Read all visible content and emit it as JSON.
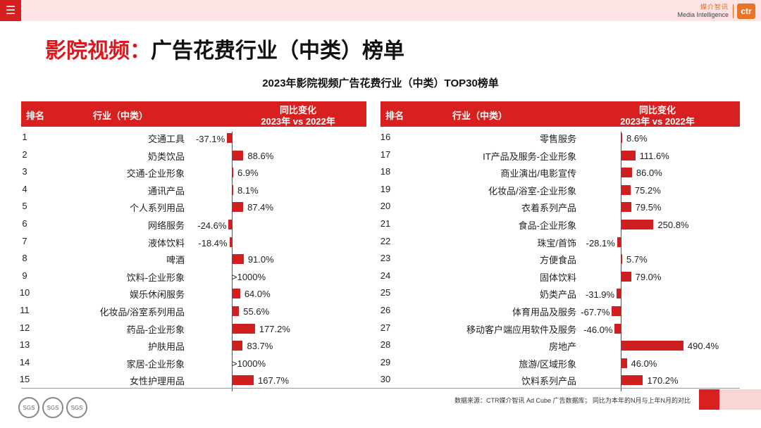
{
  "menu_icon": "menu-icon",
  "logo": {
    "cn": "媒介智讯",
    "en": "Media Intelligence",
    "mark": "ctr"
  },
  "page_title": {
    "part1": "影院视频：",
    "part2": "广告花费行业（中类）榜单"
  },
  "header": {
    "rank": "排名",
    "industry": "行业（中类）",
    "change_line1": "同比变化",
    "change_line2": "2023年 vs 2022年"
  },
  "source": "数据来源：CTR媒介智讯 Ad Cube 广告数据库；  同比为本年的N月与上年N月的对比",
  "certifications": [
    "SGS",
    "SGS",
    "SGS"
  ],
  "chart_data": {
    "type": "bar",
    "title": "2023年影院视频广告花费行业（中类）TOP30榜单",
    "unit": "%",
    "rows": [
      {
        "rank": "1",
        "label": "交通工具",
        "value": -37.1,
        "text": "-37.1%"
      },
      {
        "rank": "2",
        "label": "奶类饮品",
        "value": 88.6,
        "text": "88.6%"
      },
      {
        "rank": "3",
        "label": "交通-企业形象",
        "value": 6.9,
        "text": "6.9%"
      },
      {
        "rank": "4",
        "label": "通讯产品",
        "value": 8.1,
        "text": "8.1%"
      },
      {
        "rank": "5",
        "label": "个人系列用品",
        "value": 87.4,
        "text": "87.4%"
      },
      {
        "rank": "6",
        "label": "网络服务",
        "value": -24.6,
        "text": "-24.6%"
      },
      {
        "rank": "7",
        "label": "液体饮料",
        "value": -18.4,
        "text": "-18.4%"
      },
      {
        "rank": "8",
        "label": "啤酒",
        "value": 91.0,
        "text": "91.0%"
      },
      {
        "rank": "9",
        "label": "饮料-企业形象",
        "value": null,
        "text": ">1000%"
      },
      {
        "rank": "10",
        "label": "娱乐休闲服务",
        "value": 64.0,
        "text": "64.0%"
      },
      {
        "rank": "11",
        "label": "化妆品/浴室系列用品",
        "value": 55.6,
        "text": "55.6%"
      },
      {
        "rank": "12",
        "label": "药品-企业形象",
        "value": 177.2,
        "text": "177.2%"
      },
      {
        "rank": "13",
        "label": "护肤用品",
        "value": 83.7,
        "text": "83.7%"
      },
      {
        "rank": "14",
        "label": "家居-企业形象",
        "value": null,
        "text": ">1000%"
      },
      {
        "rank": "15",
        "label": "女性护理用品",
        "value": 167.7,
        "text": "167.7%"
      },
      {
        "rank": "16",
        "label": "零售服务",
        "value": 8.6,
        "text": "8.6%"
      },
      {
        "rank": "17",
        "label": "IT产品及服务-企业形象",
        "value": 111.6,
        "text": "111.6%"
      },
      {
        "rank": "18",
        "label": "商业演出/电影宣传",
        "value": 86.0,
        "text": "86.0%"
      },
      {
        "rank": "19",
        "label": "化妆品/浴室-企业形象",
        "value": 75.2,
        "text": "75.2%"
      },
      {
        "rank": "20",
        "label": "衣着系列产品",
        "value": 79.5,
        "text": "79.5%"
      },
      {
        "rank": "21",
        "label": "食品-企业形象",
        "value": 250.8,
        "text": "250.8%"
      },
      {
        "rank": "22",
        "label": "珠宝/首饰",
        "value": -28.1,
        "text": "-28.1%"
      },
      {
        "rank": "23",
        "label": "方便食品",
        "value": 5.7,
        "text": "5.7%"
      },
      {
        "rank": "24",
        "label": "固体饮料",
        "value": 79.0,
        "text": "79.0%"
      },
      {
        "rank": "25",
        "label": "奶类产品",
        "value": -31.9,
        "text": "-31.9%"
      },
      {
        "rank": "26",
        "label": "体育用品及服务",
        "value": -67.7,
        "text": "-67.7%"
      },
      {
        "rank": "27",
        "label": "移动客户端应用软件及服务",
        "value": -46.0,
        "text": "-46.0%"
      },
      {
        "rank": "28",
        "label": "房地产",
        "value": 490.4,
        "text": "490.4%"
      },
      {
        "rank": "29",
        "label": "旅游/区域形象",
        "value": 46.0,
        "text": "46.0%"
      },
      {
        "rank": "30",
        "label": "饮料系列产品",
        "value": 170.2,
        "text": "170.2%"
      }
    ]
  }
}
